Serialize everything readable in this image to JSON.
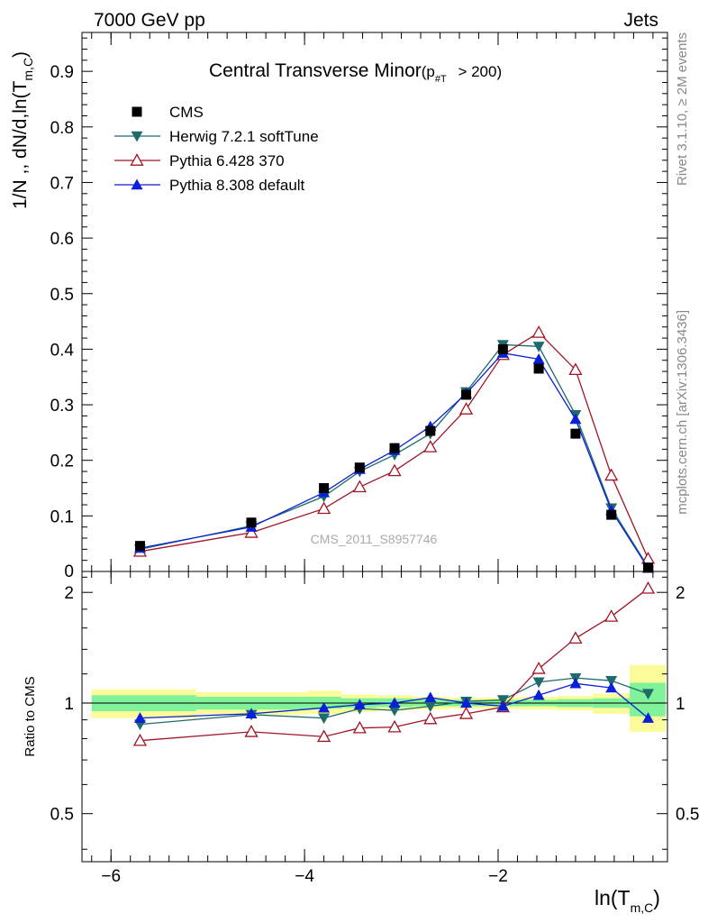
{
  "header": {
    "left": "7000 GeV pp",
    "right": "Jets"
  },
  "side_labels": {
    "rivet": "Rivet 3.1.10, ≥ 2M events",
    "mcplots": "mcplots.cern.ch [arXiv:1306.3436]"
  },
  "watermark": "CMS_2011_S8957746",
  "colors": {
    "CMS": "#000000",
    "Herwig": "#1f6b6b",
    "Pythia6": "#a01525",
    "Pythia8": "#0a1fd6",
    "band_inner": "#7ff29a",
    "band_outer": "#fbfb9a"
  },
  "chart_data": [
    {
      "type": "line",
      "title": "Central Transverse Minor",
      "title_sub": "(p",
      "title_sub_index": "#T",
      "title_sub_tail": " > 200)",
      "ylabel": "1/N ,, dN/d,ln(T",
      "ylabel_sub": "m,C",
      "ylabel_tail": ")",
      "xlim": [
        -6.3,
        -0.25
      ],
      "ylim": [
        0,
        0.97
      ],
      "yticks": [
        0.1,
        0.2,
        0.3,
        0.4,
        0.5,
        0.6,
        0.7,
        0.8,
        0.9
      ],
      "yticklabels": [
        "0.1",
        "0.2",
        "0.3",
        "0.4",
        "0.5",
        "0.6",
        "0.7",
        "0.8",
        "0.9"
      ],
      "y_zero_label": "0",
      "legend_position": "top-left",
      "x": [
        -5.7,
        -4.55,
        -3.8,
        -3.43,
        -3.07,
        -2.7,
        -2.33,
        -1.95,
        -1.58,
        -1.2,
        -0.83,
        -0.45
      ],
      "series": [
        {
          "name": "CMS",
          "marker": "square",
          "values": [
            0.046,
            0.088,
            0.15,
            0.187,
            0.222,
            0.253,
            0.318,
            0.4,
            0.365,
            0.248,
            0.102,
            0.007
          ]
        },
        {
          "name": "Herwig 7.2.1 softTune",
          "marker": "triangle-down",
          "values": [
            0.04,
            0.082,
            0.135,
            0.18,
            0.21,
            0.248,
            0.323,
            0.408,
            0.405,
            0.282,
            0.114,
            0.008
          ]
        },
        {
          "name": "Pythia 6.428 370",
          "marker": "triangle-up-open",
          "values": [
            0.036,
            0.07,
            0.113,
            0.152,
            0.181,
            0.224,
            0.292,
            0.39,
            0.43,
            0.363,
            0.173,
            0.023
          ]
        },
        {
          "name": "Pythia 8.308 default",
          "marker": "triangle-up",
          "values": [
            0.042,
            0.08,
            0.142,
            0.184,
            0.218,
            0.261,
            0.32,
            0.393,
            0.382,
            0.274,
            0.11,
            0.006
          ]
        }
      ]
    },
    {
      "type": "line",
      "ylabel": "Ratio to CMS",
      "xlabel": "ln(T",
      "xlabel_sub": "m,C",
      "xlabel_tail": ")",
      "xlim": [
        -6.3,
        -0.25
      ],
      "ylim": [
        0.37,
        2.28
      ],
      "yscale": "log",
      "xticks": [
        -6,
        -4,
        -2
      ],
      "xticklabels": [
        "−6",
        "−4",
        "−2"
      ],
      "yticks": [
        0.5,
        1,
        2
      ],
      "yticklabels": [
        "0.5",
        "1",
        "2"
      ],
      "bins": [
        {
          "lo": -6.2,
          "hi": -5.12,
          "inner": [
            0.95,
            1.05
          ],
          "outer": [
            0.91,
            1.09
          ]
        },
        {
          "lo": -5.12,
          "hi": -3.97,
          "inner": [
            0.96,
            1.04
          ],
          "outer": [
            0.93,
            1.07
          ]
        },
        {
          "lo": -3.97,
          "hi": -3.62,
          "inner": [
            0.965,
            1.04
          ],
          "outer": [
            0.935,
            1.08
          ]
        },
        {
          "lo": -3.62,
          "hi": -3.25,
          "inner": [
            0.97,
            1.03
          ],
          "outer": [
            0.945,
            1.055
          ]
        },
        {
          "lo": -3.25,
          "hi": -2.88,
          "inner": [
            0.975,
            1.03
          ],
          "outer": [
            0.955,
            1.05
          ]
        },
        {
          "lo": -2.88,
          "hi": -2.51,
          "inner": [
            0.98,
            1.025
          ],
          "outer": [
            0.96,
            1.04
          ]
        },
        {
          "lo": -2.51,
          "hi": -2.14,
          "inner": [
            0.98,
            1.02
          ],
          "outer": [
            0.965,
            1.035
          ]
        },
        {
          "lo": -2.14,
          "hi": -1.77,
          "inner": [
            0.98,
            1.02
          ],
          "outer": [
            0.965,
            1.035
          ]
        },
        {
          "lo": -1.77,
          "hi": -1.39,
          "inner": [
            0.98,
            1.02
          ],
          "outer": [
            0.96,
            1.04
          ]
        },
        {
          "lo": -1.39,
          "hi": -1.02,
          "inner": [
            0.975,
            1.025
          ],
          "outer": [
            0.955,
            1.045
          ]
        },
        {
          "lo": -1.02,
          "hi": -0.64,
          "inner": [
            0.97,
            1.03
          ],
          "outer": [
            0.935,
            1.06
          ]
        },
        {
          "lo": -0.64,
          "hi": -0.27,
          "inner": [
            0.92,
            1.135
          ],
          "outer": [
            0.835,
            1.27
          ]
        }
      ],
      "x": [
        -5.7,
        -4.55,
        -3.8,
        -3.43,
        -3.07,
        -2.7,
        -2.33,
        -1.95,
        -1.58,
        -1.2,
        -0.83,
        -0.45
      ],
      "series": [
        {
          "name": "Herwig 7.2.1 softTune",
          "marker": "triangle-down",
          "values": [
            0.875,
            0.93,
            0.91,
            0.965,
            0.955,
            0.98,
            1.01,
            1.02,
            1.14,
            1.17,
            1.15,
            1.06
          ]
        },
        {
          "name": "Pythia 6.428 370",
          "marker": "triangle-up-open",
          "values": [
            0.79,
            0.835,
            0.81,
            0.855,
            0.86,
            0.905,
            0.935,
            0.975,
            1.24,
            1.5,
            1.72,
            2.05
          ]
        },
        {
          "name": "Pythia 8.308 default",
          "marker": "triangle-up",
          "values": [
            0.91,
            0.935,
            0.97,
            0.99,
            1.0,
            1.035,
            1.0,
            0.98,
            1.05,
            1.13,
            1.1,
            0.91
          ]
        }
      ]
    }
  ]
}
